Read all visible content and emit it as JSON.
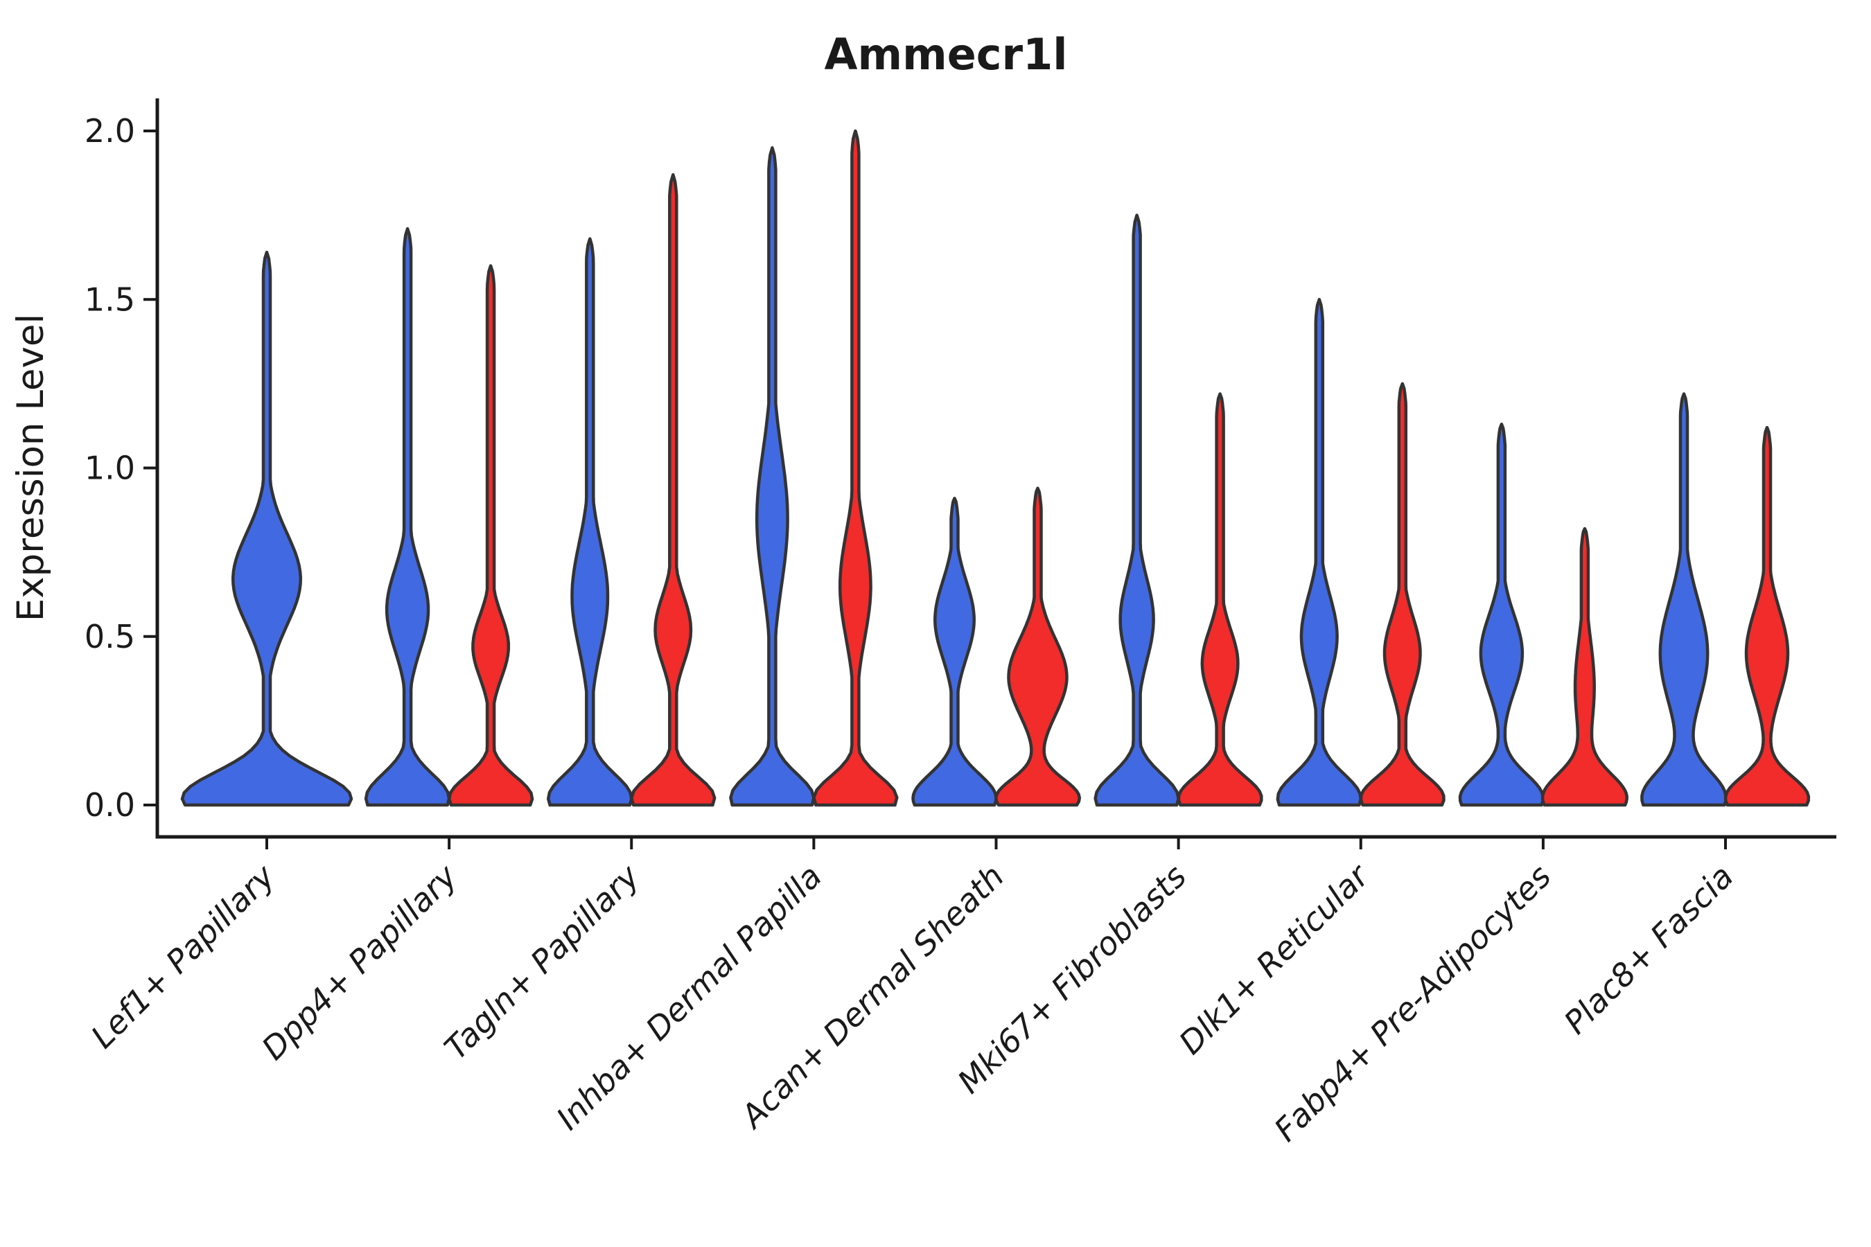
{
  "title": "Ammecr1l",
  "y_axis": {
    "label": "Expression Level",
    "tick_labels": [
      "0.0",
      "0.5",
      "1.0",
      "1.5",
      "2.0"
    ]
  },
  "x_axis": {
    "categories": [
      "Lef1+ Papillary",
      "Dpp4+ Papillary",
      "Tagln+ Papillary",
      "Inhba+ Dermal Papilla",
      "Acan+ Dermal Sheath",
      "Mki67+ Fibroblasts",
      "Dlk1+ Reticular",
      "Fabp4+ Pre-Adipocytes",
      "Plac8+ Fascia"
    ]
  },
  "colors": {
    "blue_violin_fill": "#4169E1",
    "red_violin_fill": "#F22B2B",
    "violin_outline": "#333333",
    "axis": "#1a1a1a"
  },
  "chart_data": {
    "type": "violin",
    "title": "Ammecr1l",
    "xlabel": "",
    "ylabel": "Expression Level",
    "ylim": [
      0,
      2.1
    ],
    "yticks": [
      0.0,
      0.5,
      1.0,
      1.5,
      2.0
    ],
    "grid": false,
    "legend": "none",
    "series_colors": {
      "blue": "#4169E1",
      "red": "#F22B2B"
    },
    "categories": [
      "Lef1+ Papillary",
      "Dpp4+ Papillary",
      "Tagln+ Papillary",
      "Inhba+ Dermal Papilla",
      "Acan+ Dermal Sheath",
      "Mki67+ Fibroblasts",
      "Dlk1+ Reticular",
      "Fabp4+ Pre-Adipocytes",
      "Plac8+ Fascia"
    ],
    "groups": [
      {
        "category": "Lef1+ Papillary",
        "violins": [
          {
            "series": "blue",
            "max_expression": 1.64,
            "width": "full",
            "density": [
              {
                "mu": 0.02,
                "sigma": 0.11,
                "a": 1.0
              },
              {
                "mu": 0.67,
                "sigma": 0.19,
                "a": 0.4
              }
            ]
          }
        ]
      },
      {
        "category": "Dpp4+ Papillary",
        "violins": [
          {
            "series": "blue",
            "max_expression": 1.71,
            "width": "half",
            "density": [
              {
                "mu": 0.02,
                "sigma": 0.1,
                "a": 1.0
              },
              {
                "mu": 0.58,
                "sigma": 0.17,
                "a": 0.5
              }
            ]
          },
          {
            "series": "red",
            "max_expression": 1.6,
            "width": "half",
            "density": [
              {
                "mu": 0.02,
                "sigma": 0.09,
                "a": 1.0
              },
              {
                "mu": 0.47,
                "sigma": 0.13,
                "a": 0.43
              }
            ]
          }
        ]
      },
      {
        "category": "Tagln+ Papillary",
        "violins": [
          {
            "series": "blue",
            "max_expression": 1.68,
            "width": "half",
            "density": [
              {
                "mu": 0.02,
                "sigma": 0.1,
                "a": 1.0
              },
              {
                "mu": 0.62,
                "sigma": 0.22,
                "a": 0.43
              }
            ]
          },
          {
            "series": "red",
            "max_expression": 1.87,
            "width": "half",
            "density": [
              {
                "mu": 0.02,
                "sigma": 0.09,
                "a": 1.0
              },
              {
                "mu": 0.52,
                "sigma": 0.14,
                "a": 0.43
              }
            ]
          }
        ]
      },
      {
        "category": "Inhba+ Dermal Papilla",
        "violins": [
          {
            "series": "blue",
            "max_expression": 1.95,
            "width": "half",
            "density": [
              {
                "mu": 0.02,
                "sigma": 0.1,
                "a": 1.0
              },
              {
                "mu": 0.85,
                "sigma": 0.28,
                "a": 0.37
              }
            ]
          },
          {
            "series": "red",
            "max_expression": 2.0,
            "width": "half",
            "density": [
              {
                "mu": 0.02,
                "sigma": 0.09,
                "a": 1.0
              },
              {
                "mu": 0.65,
                "sigma": 0.22,
                "a": 0.37
              }
            ]
          }
        ]
      },
      {
        "category": "Acan+ Dermal Sheath",
        "violins": [
          {
            "series": "blue",
            "max_expression": 0.91,
            "width": "half",
            "density": [
              {
                "mu": 0.02,
                "sigma": 0.1,
                "a": 1.0
              },
              {
                "mu": 0.55,
                "sigma": 0.16,
                "a": 0.47
              }
            ]
          },
          {
            "series": "red",
            "max_expression": 0.94,
            "width": "half",
            "density": [
              {
                "mu": 0.02,
                "sigma": 0.08,
                "a": 1.0
              },
              {
                "mu": 0.38,
                "sigma": 0.16,
                "a": 0.7
              }
            ]
          }
        ]
      },
      {
        "category": "Mki67+ Fibroblasts",
        "violins": [
          {
            "series": "blue",
            "max_expression": 1.75,
            "width": "half",
            "density": [
              {
                "mu": 0.02,
                "sigma": 0.1,
                "a": 1.0
              },
              {
                "mu": 0.55,
                "sigma": 0.17,
                "a": 0.4
              }
            ]
          },
          {
            "series": "red",
            "max_expression": 1.22,
            "width": "half",
            "density": [
              {
                "mu": 0.02,
                "sigma": 0.09,
                "a": 1.0
              },
              {
                "mu": 0.42,
                "sigma": 0.14,
                "a": 0.43
              }
            ]
          }
        ]
      },
      {
        "category": "Dlk1+ Reticular",
        "violins": [
          {
            "series": "blue",
            "max_expression": 1.5,
            "width": "half",
            "density": [
              {
                "mu": 0.02,
                "sigma": 0.1,
                "a": 1.0
              },
              {
                "mu": 0.5,
                "sigma": 0.17,
                "a": 0.43
              }
            ]
          },
          {
            "series": "red",
            "max_expression": 1.25,
            "width": "half",
            "density": [
              {
                "mu": 0.02,
                "sigma": 0.09,
                "a": 1.0
              },
              {
                "mu": 0.45,
                "sigma": 0.15,
                "a": 0.43
              }
            ]
          }
        ]
      },
      {
        "category": "Fabp4+ Pre-Adipocytes",
        "violins": [
          {
            "series": "blue",
            "max_expression": 1.13,
            "width": "half",
            "density": [
              {
                "mu": 0.02,
                "sigma": 0.1,
                "a": 1.0
              },
              {
                "mu": 0.45,
                "sigma": 0.16,
                "a": 0.5
              }
            ]
          },
          {
            "series": "red",
            "max_expression": 0.82,
            "width": "half",
            "density": [
              {
                "mu": 0.02,
                "sigma": 0.1,
                "a": 1.0
              },
              {
                "mu": 0.35,
                "sigma": 0.2,
                "a": 0.23
              }
            ]
          }
        ]
      },
      {
        "category": "Plac8+ Fascia",
        "violins": [
          {
            "series": "blue",
            "max_expression": 1.22,
            "width": "half",
            "density": [
              {
                "mu": 0.02,
                "sigma": 0.11,
                "a": 1.0
              },
              {
                "mu": 0.45,
                "sigma": 0.22,
                "a": 0.57
              }
            ]
          },
          {
            "series": "red",
            "max_expression": 1.12,
            "width": "half",
            "density": [
              {
                "mu": 0.02,
                "sigma": 0.09,
                "a": 1.0
              },
              {
                "mu": 0.45,
                "sigma": 0.18,
                "a": 0.5
              }
            ]
          }
        ]
      }
    ]
  }
}
